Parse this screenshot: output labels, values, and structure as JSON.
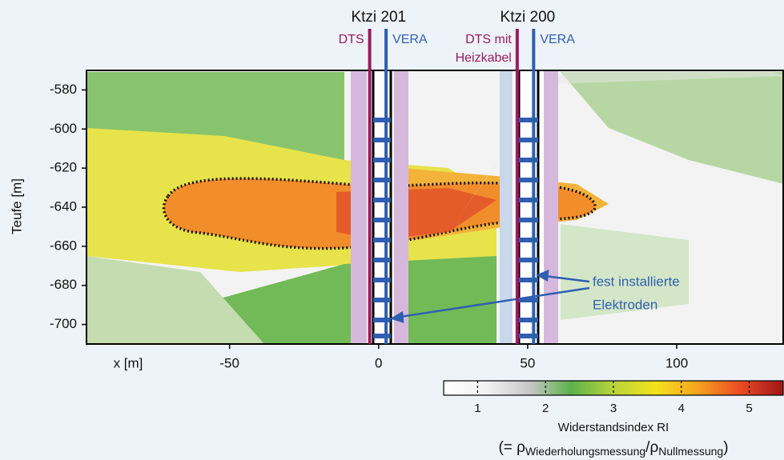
{
  "chart_data": {
    "type": "section",
    "ylabel": "Teufe [m]",
    "xlabel": "x [m]",
    "xlim": [
      -98,
      136
    ],
    "ylim": [
      -710,
      -570
    ],
    "xticks": [
      -50,
      0,
      50,
      100
    ],
    "yticks": [
      -700,
      -680,
      -660,
      -640,
      -620,
      -600,
      -580
    ],
    "wells": [
      {
        "name": "Ktzi 201",
        "x": 0,
        "sensors": [
          {
            "label": [
              "DTS"
            ],
            "x": -3,
            "color": "#9b1b5e"
          },
          {
            "label": [
              "VERA"
            ],
            "x": 2.5,
            "color": "#2f5fb0"
          }
        ]
      },
      {
        "name": "Ktzi 200",
        "x": 50,
        "sensors": [
          {
            "label": [
              "DTS mit",
              "Heizkabel"
            ],
            "x": 46.5,
            "color": "#9b1b5e"
          },
          {
            "label": [
              "VERA"
            ],
            "x": 52,
            "color": "#2f5fb0"
          }
        ]
      }
    ],
    "annotation": [
      "fest installierte",
      "Elektroden"
    ],
    "colorbar": {
      "label": "Widerstandsindex RI",
      "formula": [
        "(= ρ",
        "Wiederholungsmessung",
        "/ρ",
        "Nullmessung",
        ")"
      ],
      "lim": [
        0.5,
        5.5
      ],
      "ticks": [
        1,
        2,
        3,
        4,
        5
      ],
      "colors": [
        "#ffffff",
        "#f2f2f2",
        "#c8c8c8",
        "#5cb34a",
        "#b8d43a",
        "#f4e21c",
        "#f7a11f",
        "#ea4a24",
        "#9e1616"
      ]
    }
  }
}
